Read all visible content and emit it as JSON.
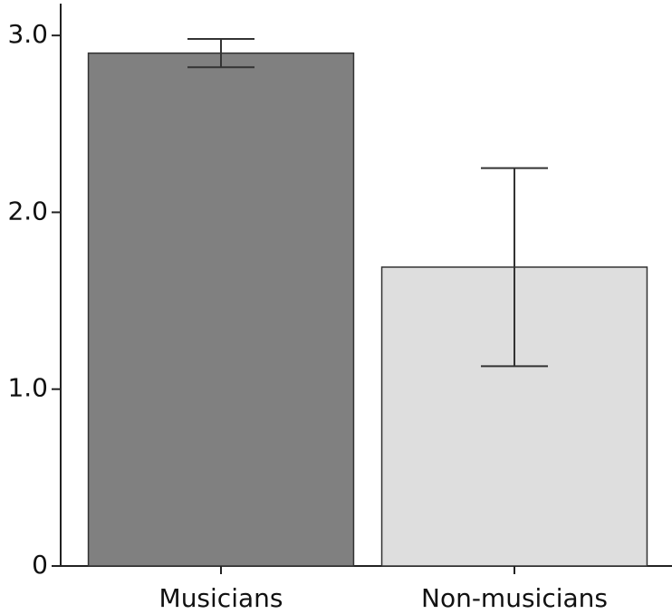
{
  "chart_data": {
    "type": "bar",
    "categories": [
      "Musicians",
      "Non-musicians"
    ],
    "values": [
      2.9,
      1.69
    ],
    "errors": [
      0.08,
      0.56
    ],
    "colors": [
      "#808080",
      "#dedede"
    ],
    "ylim": [
      0,
      3.18
    ],
    "yticks": [
      0,
      {
        "value": 1,
        "label": "1.0"
      },
      {
        "value": 2,
        "label": "2.0"
      },
      {
        "value": 3,
        "label": "3.0"
      }
    ],
    "grid": false
  }
}
